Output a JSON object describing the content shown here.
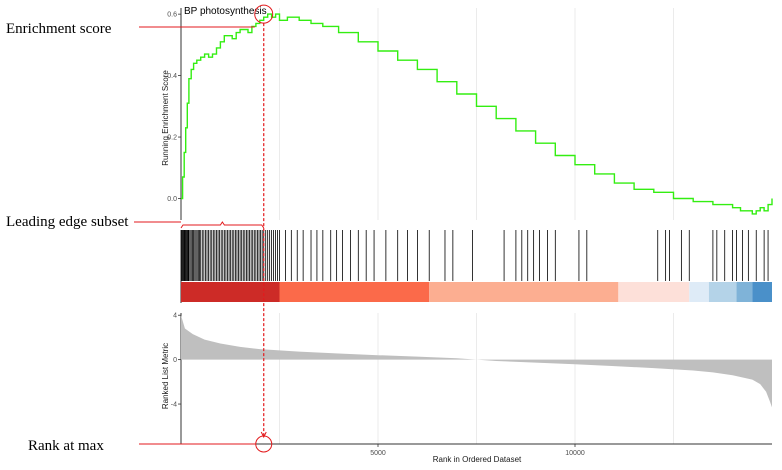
{
  "chart_data": {
    "type": "line",
    "title": "BP photosynthesis",
    "xlabel": "Rank in Ordered Dataset",
    "xlim": [
      0,
      15000
    ],
    "x_ticks": [
      5000,
      10000
    ],
    "x_tick_labels": [
      "5000",
      "10000"
    ],
    "grid": "vertical only",
    "colors": {
      "line": "#33ee11",
      "hits": "#000000",
      "metric_fill": "#bfbfbf",
      "annotation": "#e31a1c",
      "grid": "#ebebeb",
      "axis": "#333333"
    },
    "panels": {
      "running_es": {
        "ylabel": "Running Enrichment Score",
        "ylim": [
          -0.07,
          0.62
        ],
        "y_ticks": [
          0.0,
          0.2,
          0.4,
          0.6
        ],
        "y_tick_labels": [
          "0.0",
          "0.2",
          "0.4",
          "0.6"
        ],
        "x": [
          0,
          40,
          80,
          120,
          160,
          200,
          260,
          320,
          400,
          500,
          600,
          700,
          800,
          900,
          1000,
          1100,
          1200,
          1300,
          1400,
          1500,
          1600,
          1700,
          1800,
          1900,
          2000,
          2100,
          2200,
          2300,
          2400,
          2500,
          2700,
          3000,
          3300,
          3600,
          4000,
          4500,
          5000,
          5500,
          6000,
          6500,
          7000,
          7500,
          8000,
          8500,
          9000,
          9500,
          10000,
          10500,
          11000,
          11500,
          12000,
          12500,
          13000,
          13500,
          14000,
          14200,
          14400,
          14500,
          14600,
          14700,
          14800,
          14900,
          15000
        ],
        "y": [
          0.0,
          0.07,
          0.15,
          0.23,
          0.31,
          0.39,
          0.42,
          0.44,
          0.45,
          0.46,
          0.47,
          0.46,
          0.47,
          0.49,
          0.51,
          0.53,
          0.53,
          0.52,
          0.54,
          0.55,
          0.55,
          0.54,
          0.56,
          0.57,
          0.58,
          0.59,
          0.6,
          0.59,
          0.6,
          0.58,
          0.59,
          0.58,
          0.57,
          0.56,
          0.54,
          0.51,
          0.48,
          0.45,
          0.42,
          0.38,
          0.34,
          0.3,
          0.26,
          0.22,
          0.18,
          0.14,
          0.11,
          0.08,
          0.05,
          0.03,
          0.02,
          0.0,
          -0.01,
          -0.02,
          -0.03,
          -0.04,
          -0.04,
          -0.05,
          -0.04,
          -0.03,
          -0.04,
          -0.02,
          0.0
        ]
      },
      "hits": {
        "positions": [
          20,
          40,
          60,
          80,
          100,
          120,
          140,
          160,
          180,
          200,
          230,
          260,
          290,
          320,
          350,
          380,
          410,
          440,
          470,
          500,
          540,
          580,
          620,
          660,
          700,
          740,
          780,
          820,
          860,
          900,
          940,
          980,
          1020,
          1060,
          1100,
          1140,
          1180,
          1220,
          1260,
          1300,
          1340,
          1380,
          1420,
          1460,
          1500,
          1540,
          1580,
          1620,
          1660,
          1700,
          1740,
          1780,
          1820,
          1860,
          1900,
          1940,
          1980,
          2020,
          2060,
          2100,
          2150,
          2200,
          2250,
          2300,
          2350,
          2400,
          2450,
          2500,
          2650,
          2800,
          2950,
          3100,
          3300,
          3450,
          3600,
          3800,
          3950,
          4100,
          4300,
          4500,
          4700,
          4900,
          5200,
          5500,
          5750,
          6000,
          6300,
          6700,
          6900,
          7400,
          8200,
          8500,
          8650,
          8800,
          8950,
          9100,
          9300,
          9500,
          10100,
          10300,
          12100,
          12300,
          12400,
          12700,
          12900,
          13500,
          13600,
          13800,
          14000,
          14100,
          14250,
          14400,
          14600,
          14800,
          14900
        ],
        "heatmap_segments": [
          {
            "from": 0,
            "to": 2500,
            "color": "#cd2b27"
          },
          {
            "from": 2500,
            "to": 6300,
            "color": "#fb6a4a"
          },
          {
            "from": 6300,
            "to": 11100,
            "color": "#fcae91"
          },
          {
            "from": 11100,
            "to": 12900,
            "color": "#fde0d9"
          },
          {
            "from": 12900,
            "to": 13400,
            "color": "#deebf7"
          },
          {
            "from": 13400,
            "to": 14100,
            "color": "#b4d3e8"
          },
          {
            "from": 14100,
            "to": 14500,
            "color": "#7fb3d8"
          },
          {
            "from": 14500,
            "to": 15000,
            "color": "#4a90c9"
          }
        ]
      },
      "ranked_metric": {
        "ylabel": "Ranked List Metric",
        "ylim": [
          -7.6,
          4.2
        ],
        "y_ticks": [
          4,
          0,
          -4
        ],
        "y_tick_labels": [
          "4",
          "0",
          "-4"
        ],
        "x": [
          0,
          100,
          300,
          600,
          1000,
          1500,
          2000,
          3000,
          4000,
          5000,
          6000,
          7000,
          7500,
          8000,
          9000,
          10000,
          11000,
          12000,
          13000,
          13500,
          14000,
          14500,
          14700,
          14850,
          14950,
          15000
        ],
        "y": [
          4.0,
          2.8,
          2.3,
          1.8,
          1.45,
          1.15,
          0.95,
          0.72,
          0.55,
          0.4,
          0.27,
          0.12,
          0.0,
          -0.12,
          -0.27,
          -0.42,
          -0.58,
          -0.76,
          -0.98,
          -1.15,
          -1.4,
          -1.8,
          -2.2,
          -2.9,
          -3.8,
          -4.3
        ]
      }
    },
    "annotations": {
      "enrichment_score": "Enrichment score",
      "leading_edge": "Leading edge subset",
      "rank_at_max": "Rank at max",
      "peak_rank": 2100,
      "peak_score": 0.6
    }
  }
}
